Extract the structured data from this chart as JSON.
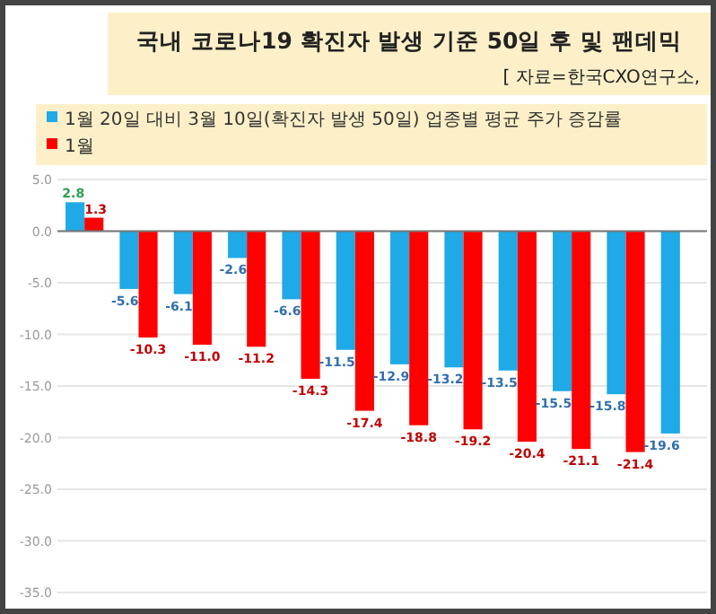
{
  "chart_data": {
    "type": "bar",
    "title": "국내 코로나19 확진자 발생 기준 50일 후 및 팬데믹",
    "annotations": [
      "[ 자료=한국CXO연구소,"
    ],
    "categories": [
      null,
      null,
      null,
      null,
      null,
      null,
      null,
      null,
      null,
      null,
      null,
      null
    ],
    "series": [
      {
        "name": "1월 20일 대비 3월 10일(확진자 발생 50일) 업종별 평균 주가 증감률",
        "color": "#1fa9e6",
        "values": [
          2.8,
          -5.6,
          -6.1,
          -2.6,
          -6.6,
          -11.5,
          -12.9,
          -13.2,
          -13.5,
          -15.5,
          -15.8,
          -19.6
        ],
        "value_labels": [
          "2.8",
          "-5.6",
          "-6.1",
          "-2.6",
          "-6.6",
          "-11.5",
          "-12.9",
          "-13.2",
          "-13.5",
          "-15.5",
          "-15.8",
          "-19.6"
        ]
      },
      {
        "name": "1월",
        "color": "#ff0000",
        "values": [
          1.3,
          -10.3,
          -11.0,
          -11.2,
          -14.3,
          -17.4,
          -18.8,
          -19.2,
          -20.4,
          -21.1,
          -21.4,
          null
        ],
        "value_labels": [
          "1.3",
          "-10.3",
          "-11.0",
          "-11.2",
          "-14.3",
          "-17.4",
          "-18.8",
          "-19.2",
          "-20.4",
          "-21.1",
          "-21.4",
          null
        ]
      }
    ],
    "ylim": [
      -35,
      5
    ],
    "yticks": [
      {
        "value": 5,
        "label": "5.0"
      },
      {
        "value": 0,
        "label": "0.0"
      },
      {
        "value": -5,
        "label": "-5.0"
      },
      {
        "value": -10,
        "label": "-10.0"
      },
      {
        "value": -15,
        "label": "-15.0"
      },
      {
        "value": -20,
        "label": "-20.0"
      },
      {
        "value": -25,
        "label": "-25.0"
      },
      {
        "value": -30,
        "label": "-30.0"
      },
      {
        "value": -35,
        "label": "-35.0"
      }
    ],
    "grid": "y",
    "legend": "top"
  }
}
